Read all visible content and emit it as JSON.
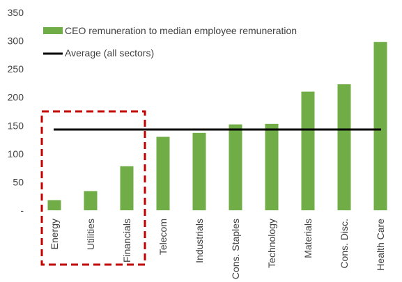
{
  "chart_data": {
    "type": "bar",
    "categories": [
      "Energy",
      "Utilities",
      "Financials",
      "Telecom",
      "Industrials",
      "Cons. Staples",
      "Technology",
      "Materials",
      "Cons. Disc.",
      "Health Care"
    ],
    "series": [
      {
        "name": "CEO remuneration to median employee remuneration",
        "values": [
          18,
          34,
          78,
          130,
          137,
          152,
          153,
          210,
          223,
          298
        ],
        "color": "#70ad47"
      }
    ],
    "average": {
      "name": "Average (all sectors)",
      "value": 143,
      "color": "#000000"
    },
    "yticks": [
      0,
      50,
      100,
      150,
      200,
      250,
      300,
      350
    ],
    "ytick_labels": [
      "-",
      "50",
      "100",
      "150",
      "200",
      "250",
      "300",
      "350"
    ],
    "ylim": [
      0,
      350
    ],
    "grid": false,
    "legend_position": "top-left",
    "highlight": {
      "categories": [
        "Energy",
        "Utilities",
        "Financials"
      ],
      "style": "dashed",
      "color": "#c00000"
    }
  }
}
